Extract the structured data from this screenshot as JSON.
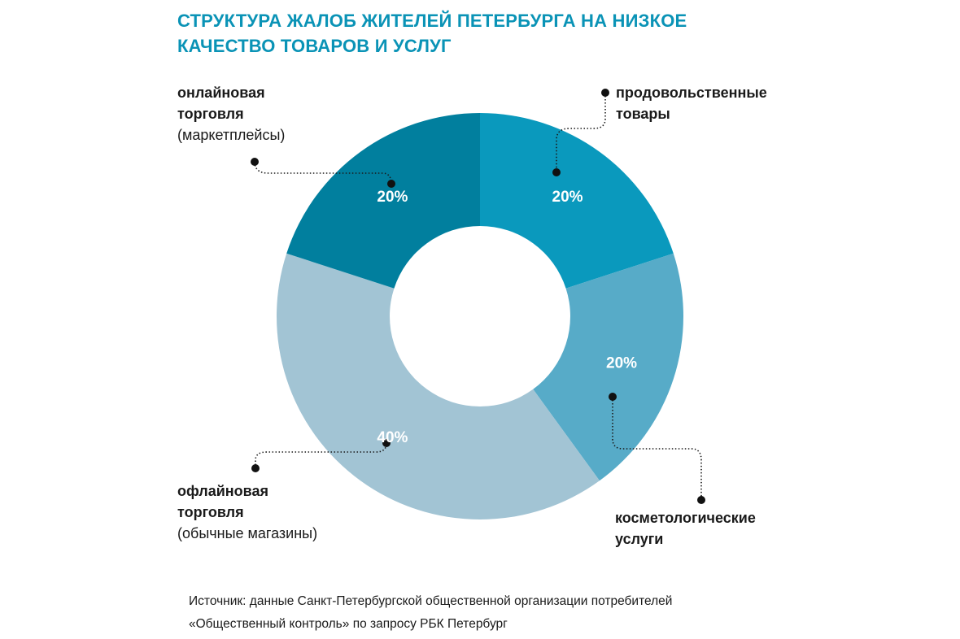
{
  "title": {
    "line1": "СТРУКТУРА ЖАЛОБ ЖИТЕЛЕЙ ПЕТЕРБУРГА НА НИЗКОЕ",
    "line2": "КАЧЕСТВО ТОВАРОВ И УСЛУГ"
  },
  "labels": {
    "online": {
      "line1": "онлайновая",
      "line2": "торговля",
      "line3": "(маркетплейсы)"
    },
    "food": {
      "line1": "продовольственные",
      "line2": "товары"
    },
    "cosmetic": {
      "line1": "косметологические",
      "line2": "услуги"
    },
    "offline": {
      "line1": "офлайновая",
      "line2": "торговля",
      "line3": "(обычные магазины)"
    }
  },
  "source": {
    "line1": "Источник: данные Санкт-Петербургской общественной организации потребителей",
    "line2": "«Общественный контроль» по запросу РБК Петербург"
  },
  "chart_data": {
    "type": "pie",
    "donut": true,
    "categories": [
      "продовольственные товары",
      "косметологические услуги",
      "офлайновая торговля (обычные магазины)",
      "онлайновая торговля (маркетплейсы)"
    ],
    "values": [
      20,
      20,
      40,
      20
    ],
    "value_labels": [
      "20%",
      "20%",
      "40%",
      "20%"
    ],
    "colors": [
      "#0a99bd",
      "#57abc8",
      "#a2c4d4",
      "#017f9e"
    ],
    "start": "12 o'clock, clockwise",
    "legend": "callout labels with dotted leader lines"
  }
}
